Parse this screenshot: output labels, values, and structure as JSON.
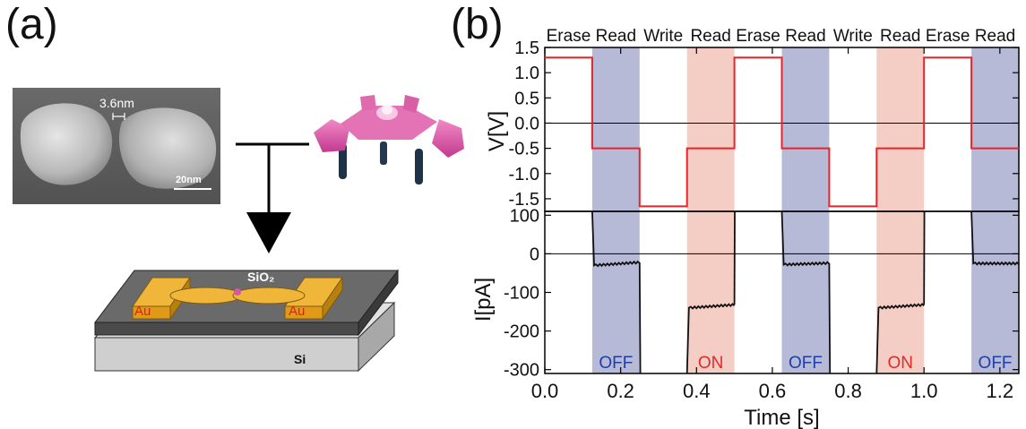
{
  "panel_a": {
    "label": "(a)",
    "sem_gap_label": "3.6nm",
    "sem_scale_label": "20nm",
    "device_labels": {
      "au_left": "Au",
      "au_right": "Au",
      "oxide": "SiO₂",
      "substrate": "Si"
    }
  },
  "panel_b": {
    "label": "(b)",
    "phase_labels": [
      "Erase",
      "Read",
      "Write",
      "Read",
      "Erase",
      "Read",
      "Write",
      "Read",
      "Erase",
      "Read"
    ],
    "state_labels": [
      "OFF",
      "ON",
      "OFF",
      "ON",
      "OFF"
    ],
    "colors": {
      "off_band": "#a9aed0",
      "on_band": "#f2c5bb",
      "voltage": "#e8232a",
      "current": "#111111",
      "off_text": "#1f3fa8",
      "on_text": "#e02a2a"
    }
  },
  "chart_data": [
    {
      "type": "line",
      "title": "",
      "xlabel": "Time [s]",
      "ylabel": "V[V]",
      "xlim": [
        0.0,
        1.25
      ],
      "ylim": [
        -1.75,
        1.5
      ],
      "yticks": [
        "1.5",
        "1.0",
        "0.5",
        "0.0",
        "-0.5",
        "-1.0",
        "-1.5"
      ],
      "series": [
        {
          "x": [
            0.0,
            0.125,
            0.125,
            0.25,
            0.25,
            0.375,
            0.375,
            0.5,
            0.5,
            0.625,
            0.625,
            0.75,
            0.75,
            0.875,
            0.875,
            1.0,
            1.0,
            1.125,
            1.125,
            1.25
          ],
          "values": [
            1.3,
            1.3,
            -0.5,
            -0.5,
            -1.65,
            -1.65,
            -0.5,
            -0.5,
            1.3,
            1.3,
            -0.5,
            -0.5,
            -1.65,
            -1.65,
            -0.5,
            -0.5,
            1.3,
            1.3,
            -0.5,
            -0.5
          ]
        }
      ],
      "bands": [
        {
          "x": [
            0.125,
            0.25
          ],
          "state": "OFF"
        },
        {
          "x": [
            0.375,
            0.5
          ],
          "state": "ON"
        },
        {
          "x": [
            0.625,
            0.75
          ],
          "state": "OFF"
        },
        {
          "x": [
            0.875,
            1.0
          ],
          "state": "ON"
        },
        {
          "x": [
            1.125,
            1.25
          ],
          "state": "OFF"
        }
      ]
    },
    {
      "type": "line",
      "title": "",
      "xlabel": "Time [s]",
      "ylabel": "I[pA]",
      "xlim": [
        0.0,
        1.25
      ],
      "ylim": [
        -310,
        110
      ],
      "xticks": [
        "0.0",
        "0.2",
        "0.4",
        "0.6",
        "0.8",
        "1.0",
        "1.2"
      ],
      "yticks": [
        "100",
        "0",
        "-100",
        "-200",
        "-300"
      ],
      "series": [
        {
          "segments": [
            {
              "x": [
                0.125,
                0.13,
                0.25
              ],
              "values": [
                110,
                -30,
                -22
              ]
            },
            {
              "x": [
                0.25,
                0.252
              ],
              "values": [
                -22,
                -310
              ]
            },
            {
              "x": [
                0.375,
                0.38,
                0.5
              ],
              "values": [
                -310,
                -140,
                -132
              ]
            },
            {
              "x": [
                0.5,
                0.501
              ],
              "values": [
                -132,
                110
              ]
            },
            {
              "x": [
                0.625,
                0.63,
                0.75
              ],
              "values": [
                110,
                -28,
                -24
              ]
            },
            {
              "x": [
                0.75,
                0.752
              ],
              "values": [
                -24,
                -310
              ]
            },
            {
              "x": [
                0.875,
                0.88,
                1.0
              ],
              "values": [
                -310,
                -140,
                -132
              ]
            },
            {
              "x": [
                1.0,
                1.001
              ],
              "values": [
                -132,
                110
              ]
            },
            {
              "x": [
                1.125,
                1.13,
                1.25
              ],
              "values": [
                110,
                -25,
                -25
              ]
            }
          ]
        }
      ]
    }
  ]
}
